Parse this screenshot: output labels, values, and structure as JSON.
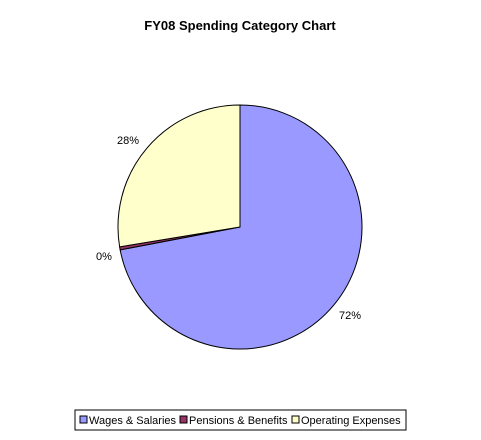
{
  "chart_data": {
    "type": "pie",
    "title": "FY08 Spending Category Chart",
    "categories": [
      "Wages & Salaries",
      "Pensions & Benefits",
      "Operating Expenses"
    ],
    "values": [
      72,
      0.4,
      27.6
    ],
    "data_labels": [
      "72%",
      "0%",
      "28%"
    ],
    "colors": [
      "#9999ff",
      "#993366",
      "#ffffcc"
    ],
    "start_angle_deg": 0,
    "direction": "clockwise",
    "legend_position": "bottom"
  }
}
